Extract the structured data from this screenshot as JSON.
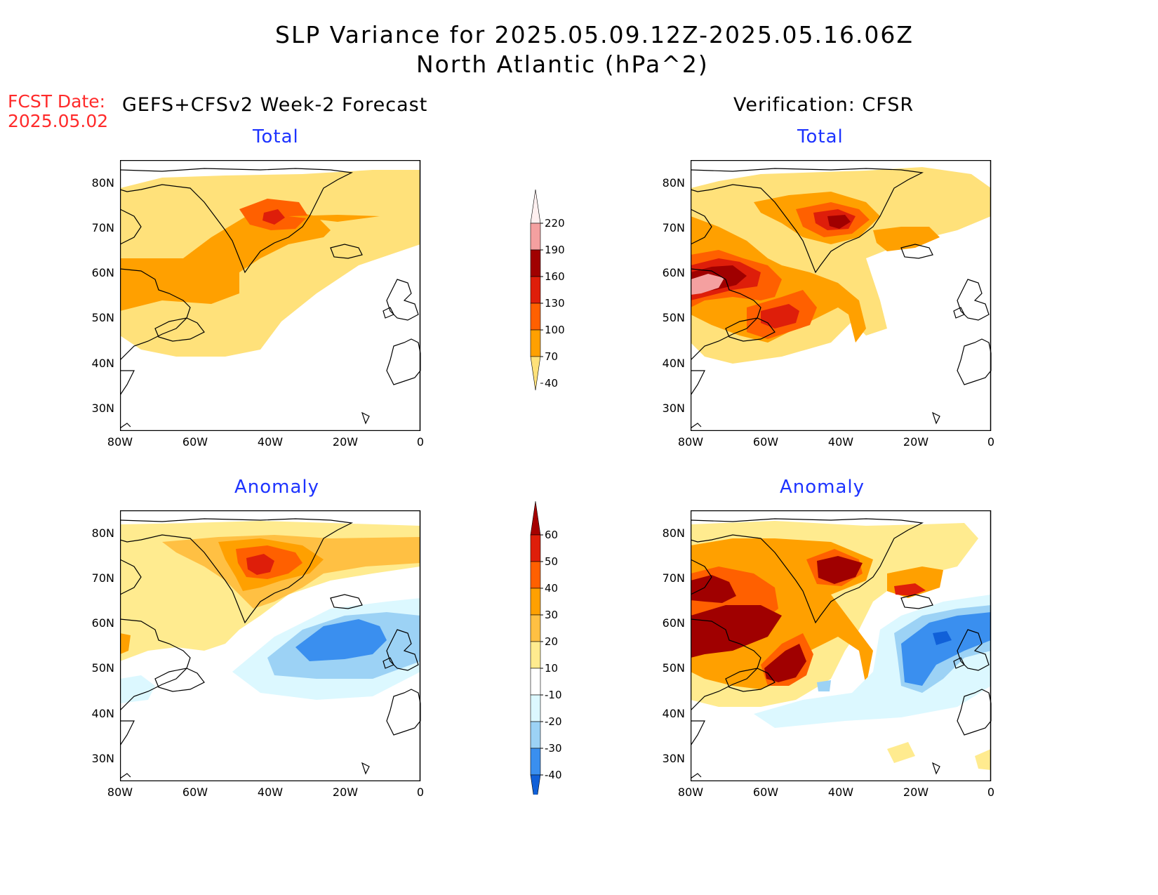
{
  "header": {
    "title_line1": "SLP Variance for 2025.05.09.12Z-2025.05.16.06Z",
    "title_line2": "North Atlantic (hPa^2)",
    "fcst_label": "FCST Date:",
    "fcst_date": "2025.05.02",
    "left_heading": "GEFS+CFSv2 Week-2 Forecast",
    "right_heading": "Verification: CFSR"
  },
  "panels": {
    "fc_total": {
      "title": "Total"
    },
    "fc_anom": {
      "title": "Anomaly"
    },
    "vf_total": {
      "title": "Total"
    },
    "vf_anom": {
      "title": "Anomaly"
    }
  },
  "axes": {
    "lat_labels": [
      "80N",
      "70N",
      "60N",
      "50N",
      "40N",
      "30N"
    ],
    "lon_labels": [
      "80W",
      "60W",
      "40W",
      "20W",
      "0"
    ]
  },
  "colorbar_total": {
    "levels": [
      "220",
      "190",
      "160",
      "130",
      "100",
      "70",
      "40"
    ],
    "colors": [
      "#fff0f0",
      "#f4a0a0",
      "#a00000",
      "#de1e0a",
      "#ff6000",
      "#ffa000",
      "#ffe17a"
    ]
  },
  "colorbar_anom": {
    "levels": [
      "60",
      "50",
      "40",
      "30",
      "20",
      "10",
      "-10",
      "-20",
      "-30",
      "-40"
    ],
    "colors": [
      "#a50000",
      "#de1e0a",
      "#ff6000",
      "#ffa000",
      "#ffc043",
      "#ffeb8f",
      "#ffffff",
      "#dcf8ff",
      "#9cd2f5",
      "#3a8fef",
      "#1060d8"
    ]
  }
}
